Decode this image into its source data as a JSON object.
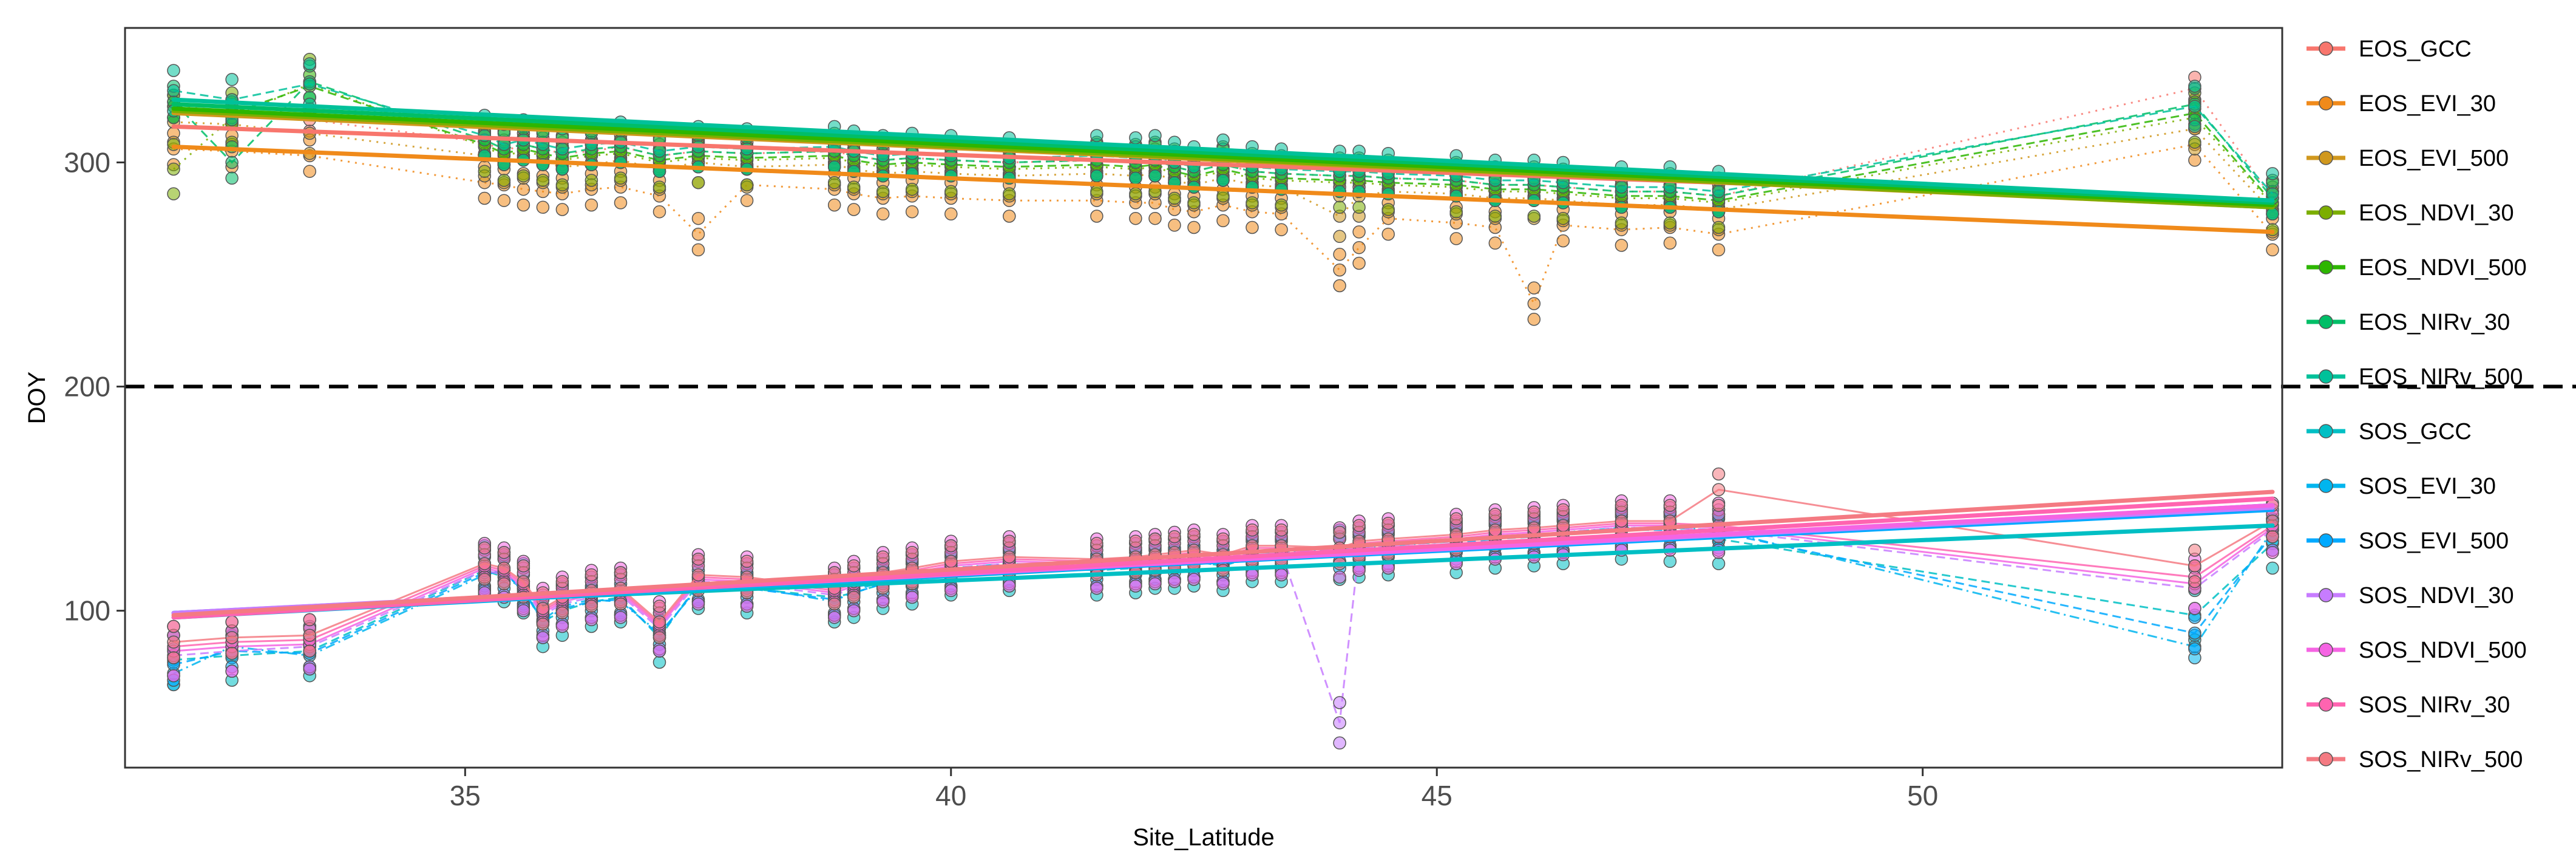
{
  "chart_data": {
    "type": "scatter",
    "title": "",
    "xlabel": "Site_Latitude",
    "ylabel": "DOY",
    "xlim": [
      31.5,
      53.7
    ],
    "ylim": [
      30,
      360
    ],
    "xticks": [
      35,
      40,
      45,
      50
    ],
    "yticks": [
      100,
      200,
      300
    ],
    "reference_line": {
      "y": 200,
      "style": "dashed"
    },
    "legend_position": "right",
    "sites": [
      32.0,
      32.6,
      33.4,
      35.2,
      35.4,
      35.6,
      35.8,
      36.0,
      36.3,
      36.6,
      37.0,
      37.4,
      37.9,
      38.8,
      39.0,
      39.3,
      39.6,
      40.0,
      40.6,
      41.5,
      41.9,
      42.1,
      42.3,
      42.5,
      42.8,
      43.1,
      43.4,
      44.0,
      44.2,
      44.5,
      45.2,
      45.6,
      46.0,
      46.3,
      46.9,
      47.4,
      47.9,
      52.8,
      53.6
    ],
    "series": [
      {
        "name": "EOS_GCC",
        "color": "#F8766D",
        "style": "dotted",
        "fit": [
          [
            32.0,
            316
          ],
          [
            53.6,
            282
          ]
        ],
        "values": [
          325,
          323,
          319,
          309,
          305,
          308,
          306,
          304,
          305,
          307,
          303,
          305,
          304,
          305,
          303,
          301,
          302,
          301,
          300,
          301,
          300,
          301,
          298,
          296,
          299,
          296,
          295,
          294,
          294,
          293,
          292,
          290,
          290,
          289,
          287,
          287,
          285,
          333,
          284
        ]
      },
      {
        "name": "EOS_EVI_30",
        "color": "#F08A1A",
        "style": "dotted",
        "fit": [
          [
            32.0,
            307
          ],
          [
            53.6,
            269
          ]
        ],
        "values": [
          306,
          305,
          303,
          291,
          290,
          288,
          287,
          286,
          288,
          289,
          285,
          268,
          290,
          288,
          286,
          284,
          285,
          284,
          283,
          283,
          282,
          282,
          279,
          278,
          281,
          278,
          277,
          252,
          262,
          275,
          273,
          271,
          237,
          272,
          270,
          271,
          268,
          308,
          268
        ]
      },
      {
        "name": "EOS_EVI_500",
        "color": "#D0981E",
        "style": "dotted",
        "fit": [
          [
            32.0,
            322
          ],
          [
            53.6,
            280
          ]
        ],
        "values": [
          318,
          317,
          313,
          303,
          300,
          302,
          300,
          298,
          299,
          301,
          297,
          300,
          298,
          299,
          297,
          295,
          296,
          295,
          294,
          295,
          294,
          295,
          292,
          290,
          293,
          290,
          289,
          276,
          285,
          287,
          286,
          284,
          284,
          283,
          281,
          281,
          279,
          315,
          278
        ]
      },
      {
        "name": "EOS_NDVI_30",
        "color": "#7CAE00",
        "style": "dotted",
        "fit": [
          [
            32.0,
            323
          ],
          [
            53.6,
            280
          ]
        ],
        "values": [
          297,
          320,
          335,
          307,
          303,
          305,
          303,
          301,
          303,
          304,
          300,
          302,
          301,
          302,
          300,
          298,
          299,
          298,
          297,
          298,
          297,
          298,
          295,
          293,
          296,
          293,
          292,
          291,
          291,
          290,
          289,
          287,
          287,
          286,
          284,
          284,
          282,
          320,
          281
        ]
      },
      {
        "name": "EOS_NDVI_500",
        "color": "#2DB600",
        "style": "dashed",
        "fit": [
          [
            32.0,
            324
          ],
          [
            53.6,
            281
          ]
        ],
        "values": [
          325,
          322,
          334,
          308,
          304,
          306,
          304,
          302,
          304,
          305,
          301,
          303,
          302,
          303,
          301,
          299,
          300,
          299,
          298,
          299,
          298,
          299,
          296,
          294,
          297,
          294,
          293,
          292,
          292,
          291,
          290,
          288,
          288,
          287,
          285,
          285,
          283,
          322,
          282
        ]
      },
      {
        "name": "EOS_NIRv_30",
        "color": "#00BE67",
        "style": "dashed",
        "fit": [
          [
            32.0,
            326
          ],
          [
            53.6,
            282
          ]
        ],
        "values": [
          327,
          300,
          336,
          310,
          306,
          308,
          306,
          304,
          306,
          307,
          303,
          305,
          304,
          305,
          303,
          301,
          302,
          301,
          300,
          301,
          300,
          301,
          298,
          296,
          299,
          296,
          295,
          294,
          294,
          293,
          292,
          290,
          290,
          289,
          287,
          287,
          285,
          326,
          284
        ]
      },
      {
        "name": "EOS_NIRv_500",
        "color": "#00C19A",
        "style": "dashed",
        "fit": [
          [
            32.0,
            328
          ],
          [
            53.6,
            283
          ]
        ],
        "values": [
          332,
          328,
          335,
          312,
          308,
          310,
          308,
          306,
          308,
          309,
          305,
          307,
          306,
          307,
          305,
          303,
          304,
          303,
          302,
          303,
          302,
          303,
          300,
          298,
          301,
          298,
          297,
          296,
          296,
          295,
          294,
          292,
          292,
          291,
          289,
          289,
          287,
          325,
          286
        ]
      },
      {
        "name": "SOS_GCC",
        "color": "#00BFC4",
        "style": "dashed",
        "fit": [
          [
            32.0,
            99
          ],
          [
            53.6,
            138
          ]
        ],
        "values": [
          78,
          80,
          82,
          118,
          115,
          110,
          95,
          100,
          104,
          106,
          88,
          112,
          110,
          106,
          108,
          112,
          114,
          118,
          120,
          118,
          119,
          121,
          121,
          122,
          120,
          124,
          124,
          125,
          126,
          127,
          128,
          130,
          131,
          132,
          134,
          133,
          132,
          98,
          130
        ]
      },
      {
        "name": "SOS_EVI_30",
        "color": "#00B5EE",
        "style": "dashdot",
        "fit": [
          [
            32.0,
            97
          ],
          [
            53.6,
            147
          ]
        ],
        "values": [
          72,
          84,
          80,
          116,
          118,
          108,
          96,
          102,
          105,
          104,
          90,
          110,
          111,
          104,
          109,
          113,
          116,
          119,
          121,
          119,
          121,
          122,
          122,
          123,
          121,
          126,
          126,
          127,
          128,
          129,
          131,
          133,
          134,
          135,
          137,
          137,
          136,
          84,
          136
        ]
      },
      {
        "name": "SOS_EVI_500",
        "color": "#00A9FF",
        "style": "dashed",
        "fit": [
          [
            32.0,
            99
          ],
          [
            53.6,
            145
          ]
        ],
        "values": [
          76,
          82,
          81,
          117,
          117,
          109,
          95,
          101,
          104,
          105,
          89,
          111,
          110,
          105,
          108,
          112,
          115,
          118,
          120,
          118,
          120,
          121,
          121,
          122,
          120,
          125,
          125,
          126,
          127,
          128,
          130,
          132,
          133,
          134,
          136,
          136,
          135,
          90,
          134
        ]
      },
      {
        "name": "SOS_NDVI_30",
        "color": "#C77CFF",
        "style": "dashed",
        "fit": [
          [
            32.0,
            99
          ],
          [
            53.6,
            146
          ]
        ],
        "values": [
          80,
          82,
          84,
          118,
          116,
          110,
          98,
          103,
          106,
          107,
          92,
          113,
          112,
          107,
          110,
          114,
          116,
          119,
          121,
          120,
          121,
          122,
          123,
          124,
          122,
          126,
          126,
          50,
          128,
          129,
          131,
          133,
          134,
          135,
          137,
          137,
          136,
          110,
          136
        ]
      },
      {
        "name": "SOS_NDVI_500",
        "color": "#F564E3",
        "style": "solid",
        "fit": [
          [
            32.0,
            98
          ],
          [
            53.6,
            147
          ]
        ],
        "values": [
          82,
          84,
          85,
          119,
          117,
          111,
          99,
          104,
          107,
          108,
          93,
          114,
          113,
          108,
          111,
          115,
          117,
          120,
          122,
          121,
          122,
          123,
          124,
          125,
          123,
          127,
          127,
          126,
          129,
          130,
          132,
          134,
          135,
          136,
          138,
          138,
          137,
          112,
          137
        ]
      },
      {
        "name": "SOS_NIRv_30",
        "color": "#FF64B0",
        "style": "solid",
        "fit": [
          [
            32.0,
            97
          ],
          [
            53.6,
            150
          ]
        ],
        "values": [
          84,
          86,
          87,
          120,
          118,
          112,
          100,
          105,
          108,
          109,
          94,
          115,
          114,
          109,
          112,
          116,
          118,
          121,
          123,
          122,
          123,
          124,
          125,
          126,
          124,
          128,
          128,
          127,
          130,
          131,
          133,
          135,
          136,
          137,
          139,
          139,
          138,
          115,
          138
        ]
      },
      {
        "name": "SOS_NIRv_500",
        "color": "#F47A82",
        "style": "solid",
        "fit": [
          [
            32.0,
            98
          ],
          [
            53.6,
            153
          ]
        ],
        "values": [
          86,
          88,
          89,
          121,
          119,
          113,
          101,
          106,
          109,
          110,
          95,
          116,
          115,
          110,
          113,
          117,
          119,
          122,
          124,
          123,
          124,
          125,
          126,
          127,
          125,
          129,
          129,
          128,
          131,
          132,
          134,
          136,
          137,
          138,
          140,
          140,
          154,
          120,
          140
        ]
      }
    ]
  }
}
